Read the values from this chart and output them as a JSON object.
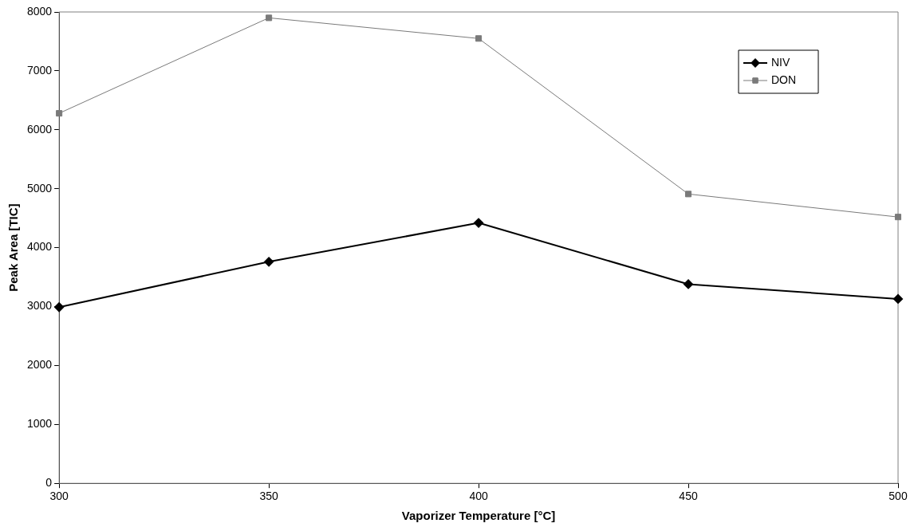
{
  "chart_data": {
    "type": "line",
    "xlabel": "Vaporizer Temperature [°C]",
    "ylabel": "Peak Area [TIC]",
    "x": [
      300,
      350,
      400,
      450,
      500
    ],
    "series": [
      {
        "name": "NIV",
        "color": "#000000",
        "marker": "diamond",
        "values": [
          2990,
          3760,
          4420,
          3380,
          3130
        ]
      },
      {
        "name": "DON",
        "color": "#7a7a7a",
        "marker": "square",
        "values": [
          6280,
          7900,
          7550,
          4910,
          4520
        ]
      }
    ],
    "xlim": [
      300,
      500
    ],
    "xticks": [
      300,
      350,
      400,
      450,
      500
    ],
    "ylim": [
      0,
      8000
    ],
    "yticks": [
      0,
      1000,
      2000,
      3000,
      4000,
      5000,
      6000,
      7000,
      8000
    ],
    "grid": false,
    "legend": "top right"
  }
}
